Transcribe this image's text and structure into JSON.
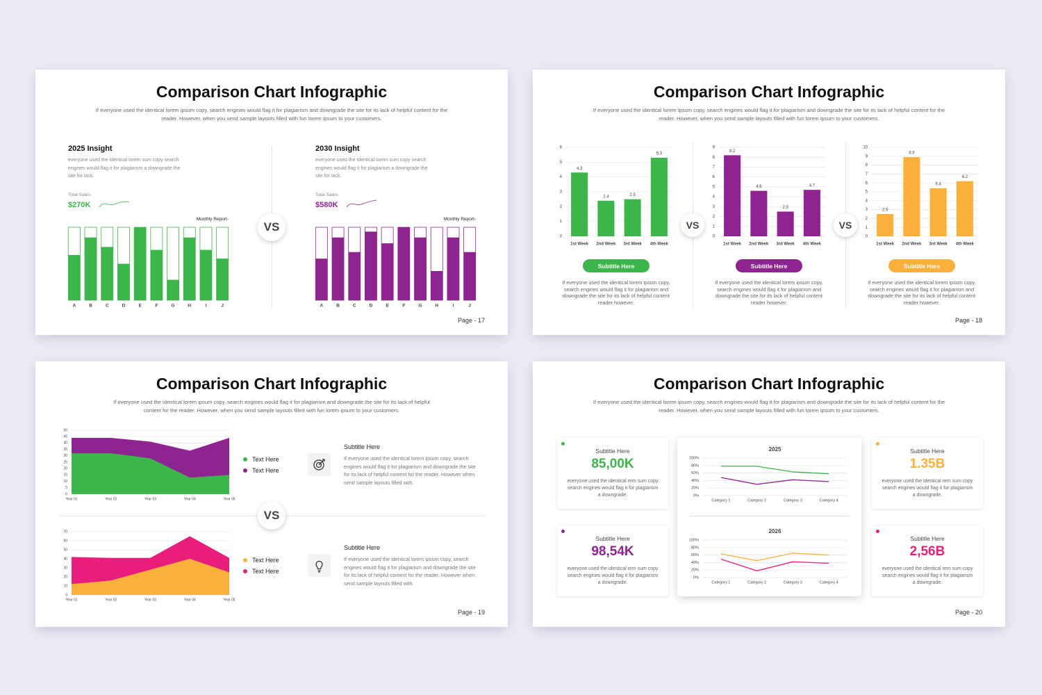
{
  "slides": [
    {
      "title": "Comparison Chart Infographic",
      "description": "If everyone used the identical lorem ipsum copy, search engines would flag it for plagiarism and downgrade the site for its lack of helpful content for the reader. However, when you send sample layouts filled with fun lorem ipsum to your customers.",
      "vs": "VS",
      "page": "Page - 17",
      "panels": [
        {
          "heading": "2025 Insight",
          "text": "everyone used the identical lorem sum copy search engines would flag it for plagiarism a downgrade the site for  lack.",
          "total_label": "Total Sales-",
          "total": "$270K",
          "report_label": "Monthly Report-",
          "chart": {
            "type": "bar",
            "track": true,
            "color": "#3cb54a",
            "ylim": [
              0,
              100
            ],
            "categories": [
              "A",
              "B",
              "C",
              "D",
              "E",
              "F",
              "G",
              "H",
              "I",
              "J"
            ],
            "values": [
              62,
              86,
              73,
              50,
              100,
              69,
              28,
              86,
              69,
              57
            ]
          }
        },
        {
          "heading": "2030 Insight",
          "text": "everyone used the identical lorem sum copy search engines would flag it for plagiarism a downgrade the site for  lack.",
          "total_label": "Total Sales-",
          "total": "$580K",
          "report_label": "Monthly Report-",
          "chart": {
            "type": "bar",
            "track": true,
            "color": "#8e2490",
            "ylim": [
              0,
              100
            ],
            "categories": [
              "A",
              "B",
              "C",
              "D",
              "E",
              "F",
              "G",
              "H",
              "I",
              "J"
            ],
            "values": [
              57,
              86,
              66,
              94,
              78,
              100,
              86,
              40,
              86,
              66
            ]
          }
        }
      ]
    },
    {
      "title": "Comparison Chart Infographic",
      "description": "If everyone used the identical lorem ipsum copy, search engines would flag it for plagiarism and downgrade the site for its lack of helpful content for the reader. However, when you send sample layouts filled with fun lorem ipsum to your customers.",
      "vs_labels": [
        "VS",
        "VS"
      ],
      "page": "Page - 18",
      "panels": [
        {
          "button": "Subtitle Here",
          "text": "If everyone used the identical lorem ipsum copy, search engines would flag it for plagiarism and downgrade the site for its lack of helpful content reader however.",
          "chart": {
            "type": "bar",
            "color": "#3cb54a",
            "grid": true,
            "data_labels": true,
            "ylim": [
              0,
              6
            ],
            "yticks": [
              0,
              1,
              2,
              3,
              4,
              5,
              6
            ],
            "categories": [
              "1st Week",
              "2nd Week",
              "3rd Week",
              "4th Week"
            ],
            "values": [
              4.3,
              2.4,
              2.5,
              5.3
            ]
          }
        },
        {
          "button": "Subtitle Here",
          "text": "If everyone used the identical lorem ipsum copy, search engines would flag it for plagiarism and downgrade the site for its lack of helpful content reader however.",
          "chart": {
            "type": "bar",
            "color": "#8e2490",
            "grid": true,
            "data_labels": true,
            "ylim": [
              0,
              9
            ],
            "yticks": [
              0,
              1,
              2,
              3,
              4,
              5,
              6,
              7,
              8,
              9
            ],
            "categories": [
              "1st Week",
              "2nd Week",
              "3rd Week",
              "4th Week"
            ],
            "values": [
              8.2,
              4.6,
              2.5,
              4.7
            ]
          }
        },
        {
          "button": "Subtitle Here",
          "text": "If everyone used the identical lorem ipsum copy, search engines would flag it for plagiarism and downgrade the site for its lack of helpful content reader however.",
          "chart": {
            "type": "bar",
            "color": "#fbb03b",
            "grid": true,
            "data_labels": true,
            "ylim": [
              0,
              10
            ],
            "yticks": [
              0,
              1,
              2,
              3,
              4,
              5,
              6,
              7,
              8,
              9,
              10
            ],
            "categories": [
              "1st Week",
              "2nd Week",
              "3rd Week",
              "4th Week"
            ],
            "values": [
              2.5,
              8.9,
              5.4,
              6.2
            ]
          }
        }
      ]
    },
    {
      "title": "Comparison Chart Infographic",
      "description": "If everyone used the identical lorem ipsum copy, search engines would flag it for plagiarism and downgrade the site for its lack of helpful content for the reader. However, when you send sample layouts filled with fun lorem ipsum to your customers.",
      "vs": "VS",
      "page": "Page - 19",
      "rows": [
        {
          "subtitle": "Subtitle Here",
          "text": "If everyone used the identical lorem ipsum copy, search engines would flag it for plagiarism and downgrade the site for its lack of helpful content for the reader. However when send sample layouts filled with.",
          "chart": {
            "type": "area",
            "grid": true,
            "ylim": [
              0,
              50
            ],
            "yticks": [
              0,
              5,
              10,
              15,
              20,
              25,
              30,
              35,
              40,
              45,
              50
            ],
            "categories": [
              "Year 01",
              "Year 02",
              "Year 03",
              "Year 04",
              "Year 05"
            ],
            "series": [
              {
                "name": "Text Here",
                "color": "#3cb54a",
                "values": [
                  32,
                  32,
                  28,
                  13,
                  15
                ]
              },
              {
                "name": "Text Here",
                "color": "#8e2490",
                "values": [
                  44,
                  44,
                  41,
                  34,
                  44
                ]
              }
            ]
          }
        },
        {
          "subtitle": "Subtitle Here",
          "text": "If everyone used the identical lorem ipsum copy, search engines would flag it for plagiarism and downgrade the site for its lack of helpful content for the reader. However when send sample layouts filled with.",
          "chart": {
            "type": "area",
            "grid": true,
            "ylim": [
              0,
              70
            ],
            "yticks": [
              0,
              10,
              20,
              30,
              40,
              50,
              60,
              70
            ],
            "categories": [
              "Year 01",
              "Year 02",
              "Year 03",
              "Year 04",
              "Year 05"
            ],
            "series": [
              {
                "name": "Text Here",
                "color": "#fbb03b",
                "values": [
                  12,
                  16,
                  28,
                  40,
                  25
                ]
              },
              {
                "name": "Text Here",
                "color": "#e91e7a",
                "values": [
                  42,
                  41,
                  41,
                  65,
                  41
                ]
              }
            ]
          }
        }
      ]
    },
    {
      "title": "Comparison Chart Infographic",
      "description": "If everyone used the identical lorem ipsum copy, search engines would flag it for plagiarism and downgrade the site for its lack of helpful content for the reader. However, when you send sample layouts filled with fun lorem ipsum to your customers.",
      "page": "Page - 20",
      "cards": [
        {
          "subtitle": "Subtitle Here",
          "value": "85,00K",
          "color": "#3cb54a",
          "text": "everyone used the identical rem sum copy search engines would flag it for plagiarism a downgrade."
        },
        {
          "subtitle": "Subtitle Here",
          "value": "98,54K",
          "color": "#8e2490",
          "text": "everyone used the identical rem sum copy search engines would flag it for plagiarism a downgrade."
        },
        {
          "subtitle": "Subtitle Here",
          "value": "1.35B",
          "color": "#fbb03b",
          "text": "everyone used the identical rem sum copy search engines would flag it for plagiarism a downgrade."
        },
        {
          "subtitle": "Subtitle Here",
          "value": "2,56B",
          "color": "#e91e7a",
          "text": "everyone used the identical rem sum copy search engines would flag it for plagiarism a downgrade."
        }
      ],
      "charts": [
        {
          "type": "line",
          "title": "2025",
          "grid": true,
          "ylim": [
            0,
            100
          ],
          "yticks": [
            {
              "value": 0,
              "label": "0%"
            },
            {
              "value": 20,
              "label": "20%"
            },
            {
              "value": 40,
              "label": "40%"
            },
            {
              "value": 60,
              "label": "60%"
            },
            {
              "value": 80,
              "label": "80%"
            },
            {
              "value": 100,
              "label": "100%"
            }
          ],
          "categories": [
            "Category 1",
            "Category 2",
            "Category 3",
            "Category 4"
          ],
          "series": [
            {
              "color": "#3cb54a",
              "values": [
                78,
                78,
                63,
                58
              ]
            },
            {
              "color": "#8e2490",
              "values": [
                48,
                30,
                42,
                37
              ]
            }
          ]
        },
        {
          "type": "line",
          "title": "2026",
          "grid": true,
          "ylim": [
            0,
            100
          ],
          "yticks": [
            {
              "value": 0,
              "label": "0%"
            },
            {
              "value": 20,
              "label": "20%"
            },
            {
              "value": 40,
              "label": "40%"
            },
            {
              "value": 60,
              "label": "60%"
            },
            {
              "value": 80,
              "label": "80%"
            },
            {
              "value": 100,
              "label": "100%"
            }
          ],
          "categories": [
            "Category 1",
            "Category 2",
            "Category 3",
            "Category 4"
          ],
          "series": [
            {
              "color": "#fbb03b",
              "values": [
                63,
                45,
                65,
                60
              ]
            },
            {
              "color": "#e91e7a",
              "values": [
                49,
                18,
                42,
                38
              ]
            }
          ]
        }
      ]
    }
  ]
}
